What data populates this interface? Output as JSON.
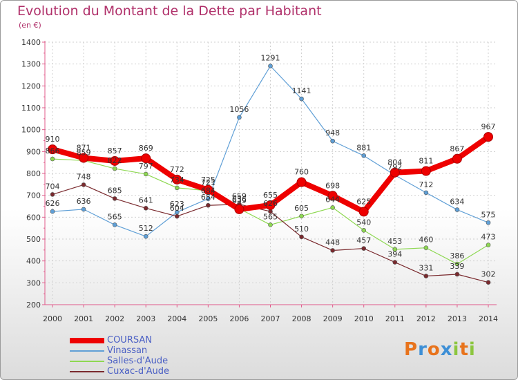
{
  "title": "Evolution du Montant de la Dette par Habitant",
  "subtitle": "(en €)",
  "logo": "Proxiti",
  "chart_data": {
    "type": "line",
    "x": [
      "2000",
      "2001",
      "2002",
      "2003",
      "2004",
      "2005",
      "2006",
      "2007",
      "2008",
      "2009",
      "2010",
      "2011",
      "2012",
      "2013",
      "2014"
    ],
    "ylim": [
      200,
      1400
    ],
    "yticks": [
      "200",
      "300",
      "400",
      "500",
      "600",
      "700",
      "800",
      "900",
      "1000",
      "1100",
      "1200",
      "1300",
      "1400"
    ],
    "grid": true,
    "legend_position": "bottom-left",
    "series": [
      {
        "name": "COURSAN",
        "color": "#ee0000",
        "values": [
          910,
          871,
          857,
          869,
          772,
          725,
          636,
          655,
          760,
          698,
          625,
          804,
          811,
          867,
          967
        ]
      },
      {
        "name": "Vinassan",
        "color": "#5f9fd6",
        "values": [
          626,
          636,
          565,
          512,
          623,
          684,
          1056,
          1291,
          1141,
          948,
          881,
          792,
          712,
          634,
          575
        ]
      },
      {
        "name": "Salles-d'Aude",
        "color": "#8ed852",
        "values": [
          866,
          859,
          822,
          797,
          734,
          721,
          639,
          565,
          605,
          644,
          540,
          453,
          460,
          386,
          473
        ]
      },
      {
        "name": "Cuxac-d'Aude",
        "color": "#7a2a2e",
        "values": [
          704,
          748,
          685,
          641,
          604,
          654,
          659,
          626,
          510,
          448,
          457,
          394,
          331,
          339,
          302
        ]
      }
    ]
  }
}
